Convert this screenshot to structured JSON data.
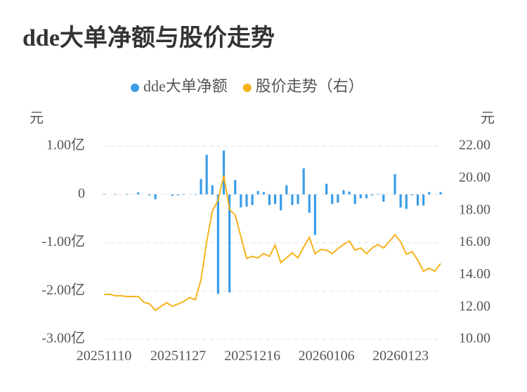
{
  "chart_data": {
    "type": "combo",
    "title": "dde大单净额与股价走势",
    "y_label": "元",
    "y2_label": "元",
    "categories": [
      "20251110",
      null,
      null,
      null,
      null,
      null,
      null,
      null,
      null,
      null,
      null,
      null,
      null,
      "20251127",
      null,
      null,
      null,
      null,
      null,
      null,
      null,
      null,
      null,
      null,
      null,
      null,
      "20251216",
      null,
      null,
      null,
      null,
      null,
      null,
      null,
      null,
      null,
      null,
      null,
      null,
      "20260106",
      null,
      null,
      null,
      null,
      null,
      null,
      null,
      null,
      null,
      null,
      null,
      null,
      "20260123",
      null,
      null,
      null,
      null,
      null,
      null,
      null
    ],
    "series": [
      {
        "name": "dde大单净额",
        "type": "bar",
        "color": "#3a9de8",
        "values": [
          0.01,
          0,
          0.01,
          0,
          0.01,
          0,
          0.04,
          0,
          -0.02,
          -0.1,
          0,
          0,
          -0.03,
          -0.02,
          0.01,
          0,
          0.01,
          0.32,
          0.82,
          0.19,
          -2.06,
          0.91,
          -2.03,
          0.3,
          -0.27,
          -0.25,
          -0.22,
          0.07,
          0.05,
          -0.22,
          -0.2,
          -0.33,
          0.19,
          -0.22,
          -0.2,
          0.54,
          -0.38,
          -0.84,
          0,
          0.22,
          -0.2,
          -0.17,
          0.09,
          0.06,
          -0.2,
          -0.08,
          -0.08,
          -0.02,
          0.01,
          -0.15,
          0,
          0.42,
          -0.27,
          -0.3,
          -0.02,
          -0.23,
          -0.23,
          0.05,
          0,
          0.05
        ]
      },
      {
        "name": "股价走势（右）",
        "type": "line",
        "axis": "y2",
        "color": "#f5b31a",
        "values": [
          12.79,
          12.8,
          12.7,
          12.7,
          12.66,
          12.66,
          12.66,
          12.3,
          12.2,
          11.8,
          12.05,
          12.27,
          12.05,
          12.2,
          12.35,
          12.6,
          12.45,
          13.7,
          16.06,
          17.98,
          18.64,
          20.17,
          18.07,
          17.72,
          16.37,
          15.02,
          15.15,
          15.06,
          15.32,
          15.15,
          15.85,
          14.76,
          15.06,
          15.37,
          15.06,
          15.72,
          16.33,
          15.32,
          15.58,
          15.54,
          15.32,
          15.63,
          15.89,
          16.11,
          15.54,
          15.67,
          15.32,
          15.67,
          15.89,
          15.67,
          16.06,
          16.5,
          16.06,
          15.28,
          15.45,
          14.93,
          14.23,
          14.41,
          14.23,
          14.71
        ]
      }
    ],
    "ylim": [
      -3,
      1
    ],
    "yticks": [
      {
        "value": 1,
        "label": "1.00亿"
      },
      0,
      {
        "value": -1,
        "label": "-1.00亿"
      },
      {
        "value": -2,
        "label": "-2.00亿"
      },
      {
        "value": -3,
        "label": "-3.00亿"
      }
    ],
    "y2lim": [
      10,
      22
    ],
    "y2ticks": [
      {
        "value": 22,
        "label": "22.00"
      },
      {
        "value": 20,
        "label": "20.00"
      },
      {
        "value": 18,
        "label": "18.00"
      },
      {
        "value": 16,
        "label": "16.00"
      },
      {
        "value": 14,
        "label": "14.00"
      },
      {
        "value": 12,
        "label": "12.00"
      },
      {
        "value": 10,
        "label": "10.00"
      }
    ],
    "grid": true
  }
}
